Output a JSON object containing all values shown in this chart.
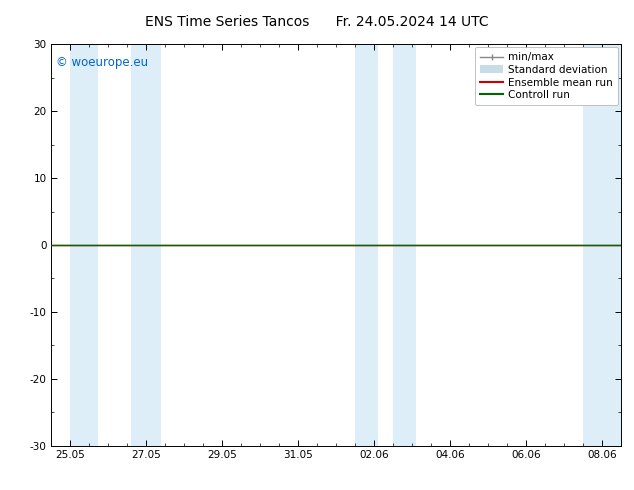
{
  "title_left": "ENS Time Series Tancos",
  "title_right": "Fr. 24.05.2024 14 UTC",
  "ylim": [
    -30,
    30
  ],
  "yticks": [
    -30,
    -20,
    -10,
    0,
    10,
    20,
    30
  ],
  "background_color": "#ffffff",
  "plot_bg_color": "#ffffff",
  "watermark": "© woeurope.eu",
  "watermark_color": "#0066cc",
  "shaded_bands": [
    [
      0.0,
      0.75
    ],
    [
      1.6,
      2.4
    ],
    [
      7.5,
      8.1
    ],
    [
      8.5,
      9.1
    ],
    [
      13.5,
      14.5
    ]
  ],
  "shaded_color": "#ddeef8",
  "x_tick_positions": [
    0,
    2,
    4,
    6,
    8,
    10,
    12,
    14
  ],
  "x_tick_labels": [
    "25.05",
    "27.05",
    "29.05",
    "31.05",
    "02.06",
    "04.06",
    "06.06",
    "08.06"
  ],
  "x_min": -0.5,
  "x_max": 14.5,
  "control_run_color": "#006600",
  "ensemble_mean_color": "#cc0000",
  "minmax_color": "#888888",
  "stddev_color": "#c8dce8",
  "title_fontsize": 10,
  "tick_fontsize": 7.5,
  "legend_fontsize": 7.5,
  "watermark_fontsize": 8.5
}
